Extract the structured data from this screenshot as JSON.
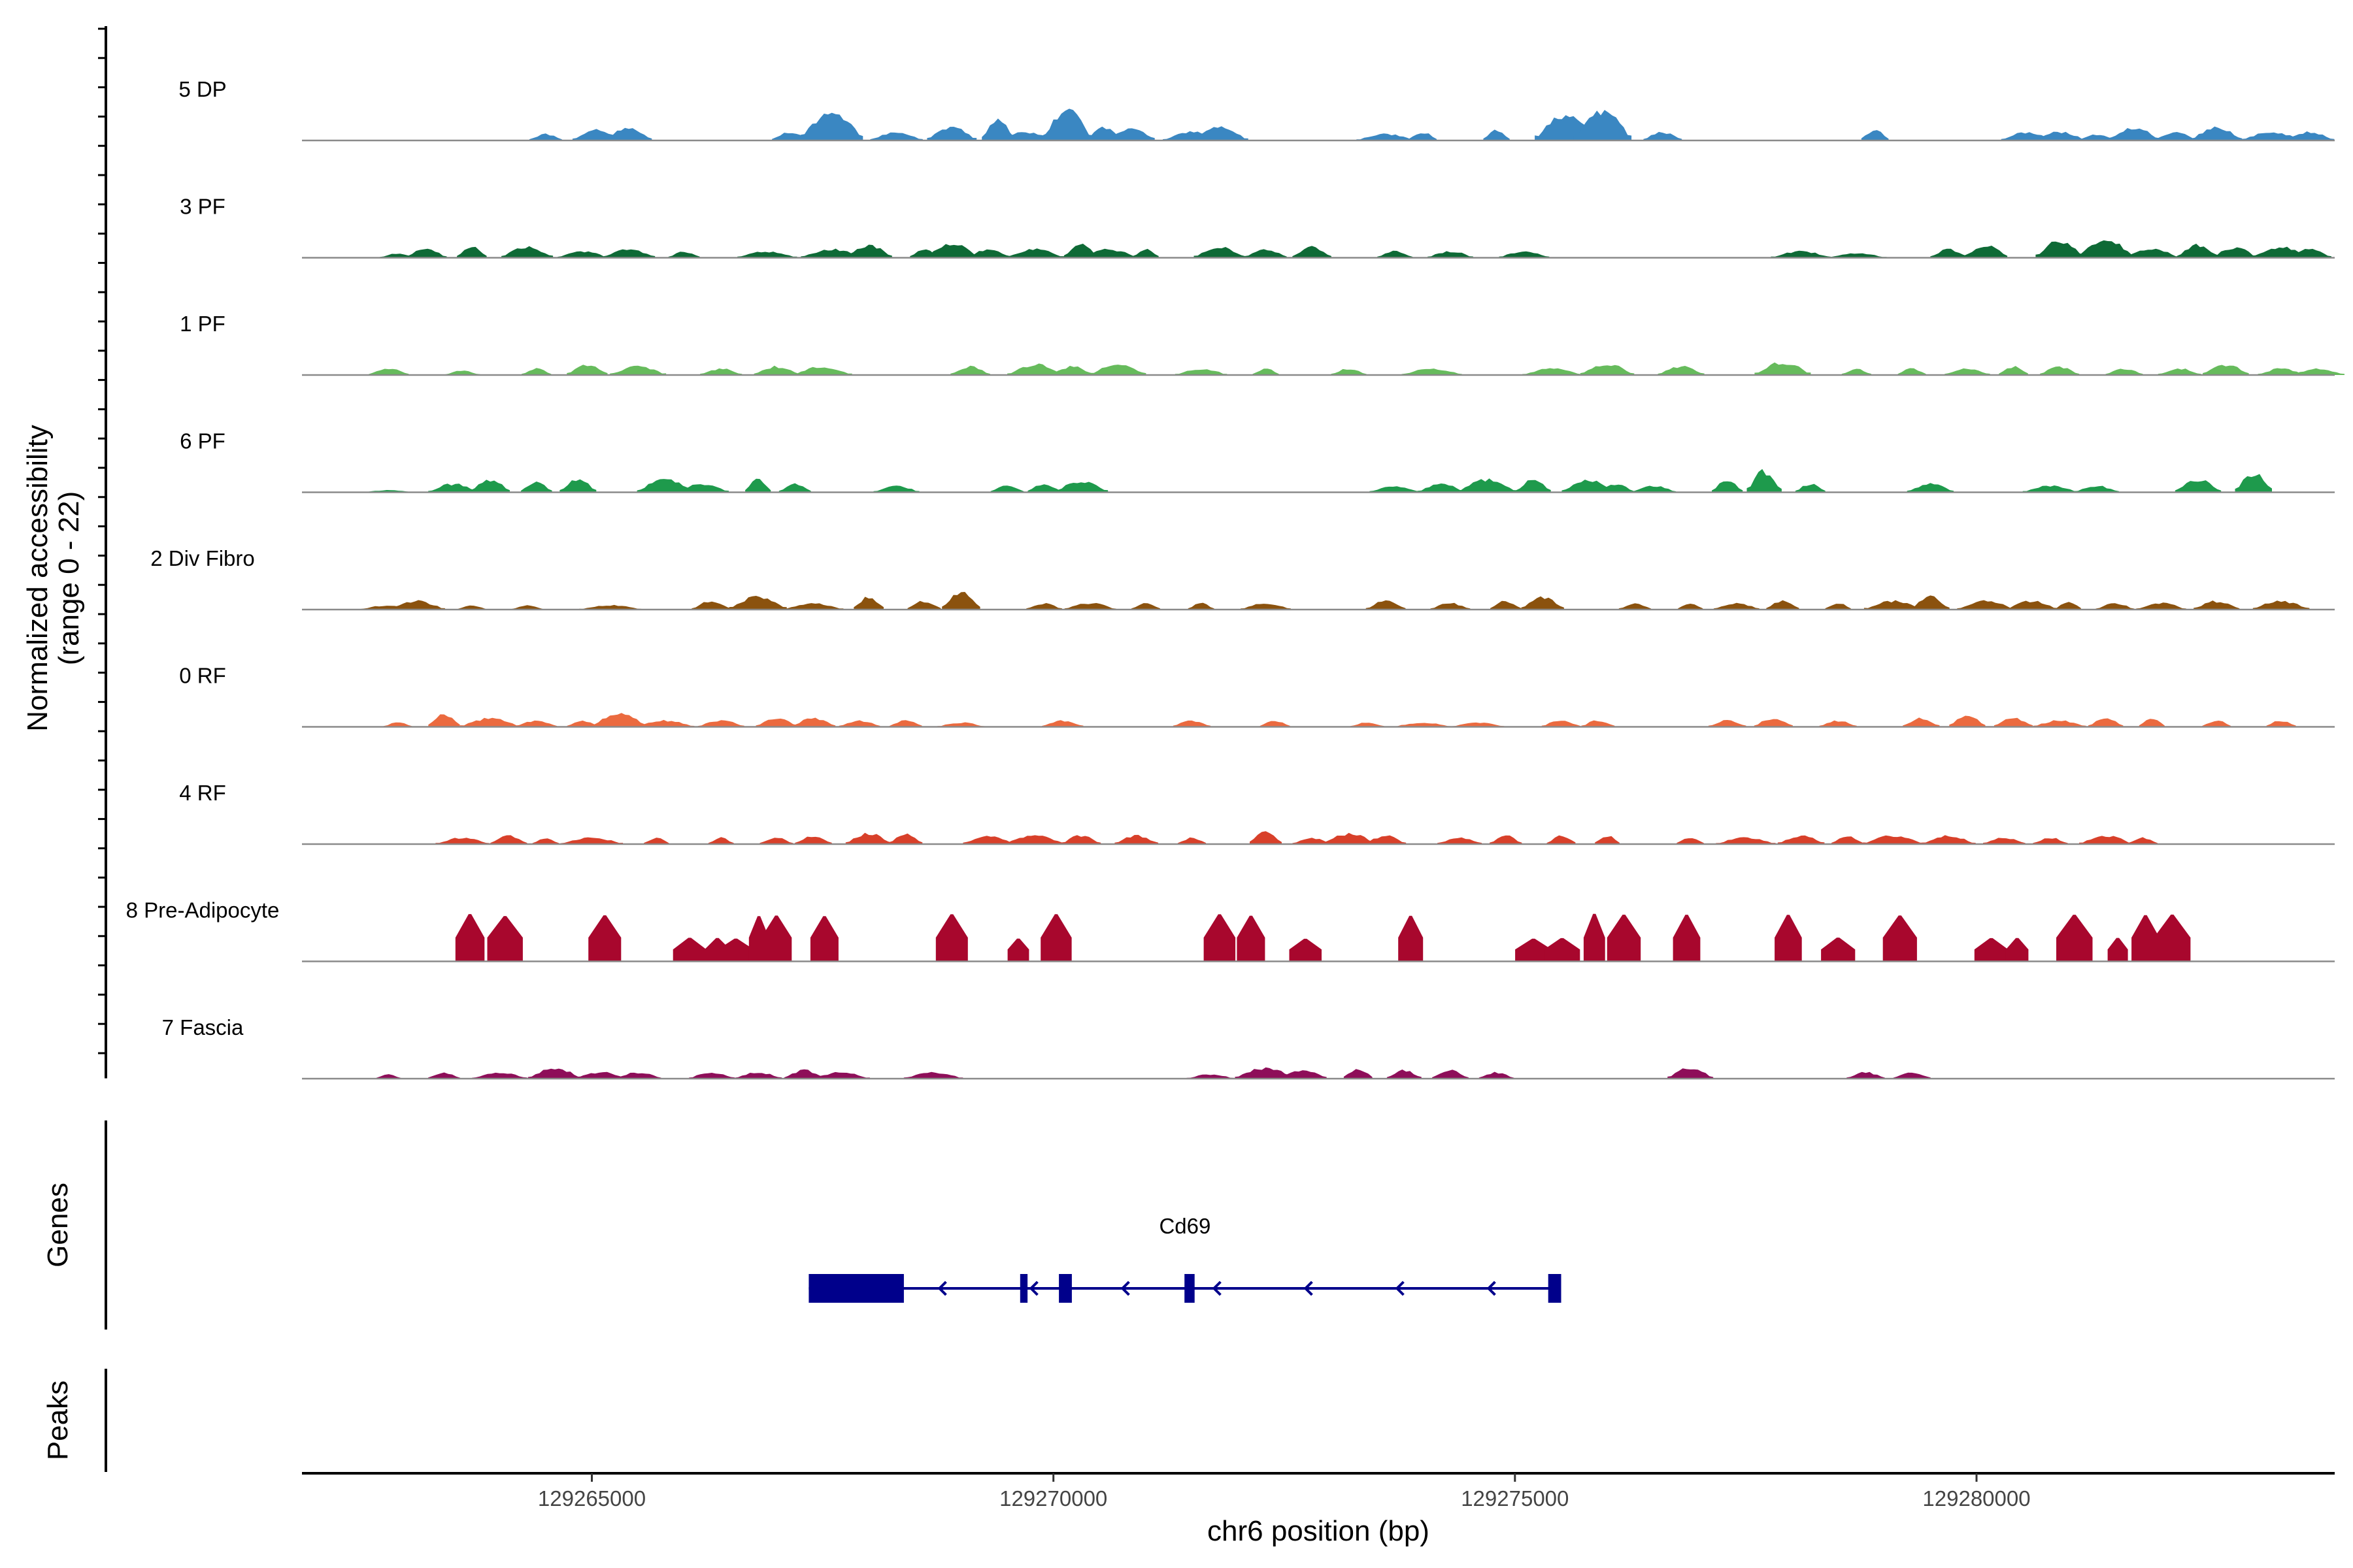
{
  "chart_data": {
    "type": "area",
    "title": "",
    "ylabel": [
      "Normalized accessibility",
      "(range 0 - 22)"
    ],
    "y_range": [
      0,
      22
    ],
    "xlabel": "chr6 position (bp)",
    "xlim": [
      129261860,
      129283880
    ],
    "x_ticks": [
      129265000,
      129270000,
      129275000,
      129280000
    ],
    "x_tick_labels": [
      "129265000",
      "129270000",
      "129275000",
      "129280000"
    ],
    "tracks": [
      {
        "name": "5 DP",
        "color": "#3A87C2",
        "seed": 5,
        "peaks": [
          [
            129264500,
            1.5
          ],
          [
            129265050,
            2.5
          ],
          [
            129265400,
            3
          ],
          [
            129267150,
            2
          ],
          [
            129267600,
            7
          ],
          [
            129268300,
            2
          ],
          [
            129268900,
            3
          ],
          [
            129269400,
            5
          ],
          [
            129269700,
            2
          ],
          [
            129270150,
            7
          ],
          [
            129270550,
            3
          ],
          [
            129270850,
            3
          ],
          [
            129271500,
            2
          ],
          [
            129271800,
            3
          ],
          [
            129273600,
            1.5
          ],
          [
            129274000,
            2
          ],
          [
            129274800,
            2.5
          ],
          [
            129275550,
            6
          ],
          [
            129275950,
            7
          ],
          [
            129276600,
            2
          ],
          [
            129278900,
            2.5
          ],
          [
            129280550,
            2
          ],
          [
            129280900,
            2
          ],
          [
            129281300,
            1.5
          ],
          [
            129281700,
            3
          ],
          [
            129282150,
            2
          ],
          [
            129282600,
            3
          ],
          [
            129283200,
            2
          ],
          [
            129283600,
            2
          ]
        ]
      },
      {
        "name": "3 PF",
        "color": "#0E6A36",
        "seed": 3,
        "peaks": [
          [
            129262900,
            1
          ],
          [
            129263200,
            2
          ],
          [
            129263700,
            2.5
          ],
          [
            129264300,
            2.5
          ],
          [
            129264900,
            1.5
          ],
          [
            129265400,
            2
          ],
          [
            129266000,
            1.5
          ],
          [
            129266900,
            1.5
          ],
          [
            129267600,
            2
          ],
          [
            129268000,
            3
          ],
          [
            129268600,
            2
          ],
          [
            129268900,
            3.5
          ],
          [
            129269300,
            2
          ],
          [
            129269800,
            2
          ],
          [
            129270300,
            3
          ],
          [
            129270600,
            2
          ],
          [
            129271000,
            2
          ],
          [
            129271800,
            2.5
          ],
          [
            129272300,
            2
          ],
          [
            129272800,
            2.5
          ],
          [
            129273700,
            1.5
          ],
          [
            129274300,
            1.5
          ],
          [
            129275100,
            1.5
          ],
          [
            129278100,
            1.5
          ],
          [
            129278700,
            1
          ],
          [
            129279700,
            2
          ],
          [
            129280100,
            3
          ],
          [
            129280900,
            4
          ],
          [
            129281400,
            4
          ],
          [
            129281900,
            2
          ],
          [
            129282400,
            3
          ],
          [
            129282800,
            2.5
          ],
          [
            129283300,
            2.5
          ],
          [
            129283600,
            2
          ]
        ]
      },
      {
        "name": "1 PF",
        "color": "#66BB5C",
        "seed": 1,
        "peaks": [
          [
            129262800,
            1.5
          ],
          [
            129263600,
            1
          ],
          [
            129264400,
            1.5
          ],
          [
            129264950,
            2.5
          ],
          [
            129265500,
            2
          ],
          [
            129266400,
            1.5
          ],
          [
            129267000,
            2
          ],
          [
            129267500,
            2
          ],
          [
            129269100,
            2
          ],
          [
            129269800,
            2.5
          ],
          [
            129270200,
            2
          ],
          [
            129270700,
            2.5
          ],
          [
            129271600,
            1.5
          ],
          [
            129272300,
            1.5
          ],
          [
            129273200,
            1.5
          ],
          [
            129274100,
            1.5
          ],
          [
            129275400,
            1.5
          ],
          [
            129276000,
            2.5
          ],
          [
            129276800,
            2
          ],
          [
            129277900,
            3
          ],
          [
            129278700,
            1.5
          ],
          [
            129279300,
            1.5
          ],
          [
            129279900,
            1.5
          ],
          [
            129280400,
            2
          ],
          [
            129280900,
            2
          ],
          [
            129281600,
            1.5
          ],
          [
            129282200,
            1.5
          ],
          [
            129282700,
            2.5
          ],
          [
            129283300,
            1.5
          ],
          [
            129283700,
            1.5
          ]
        ]
      },
      {
        "name": "6 PF",
        "color": "#1E9A4C",
        "seed": 6,
        "peaks": [
          [
            129262800,
            0.5
          ],
          [
            129263500,
            2
          ],
          [
            129263900,
            3
          ],
          [
            129264400,
            2.5
          ],
          [
            129264850,
            3
          ],
          [
            129265800,
            3
          ],
          [
            129266200,
            2
          ],
          [
            129266800,
            3
          ],
          [
            129267200,
            2
          ],
          [
            129268300,
            1.5
          ],
          [
            129269500,
            1.5
          ],
          [
            129269900,
            2
          ],
          [
            129270300,
            2.5
          ],
          [
            129273700,
            1.5
          ],
          [
            129274200,
            2
          ],
          [
            129274700,
            3
          ],
          [
            129275200,
            3
          ],
          [
            129275800,
            3
          ],
          [
            129276100,
            2
          ],
          [
            129276500,
            1.5
          ],
          [
            129277300,
            3
          ],
          [
            129277700,
            5
          ],
          [
            129278200,
            2
          ],
          [
            129279500,
            2
          ],
          [
            129280800,
            1.5
          ],
          [
            129281300,
            1.5
          ],
          [
            129282400,
            3
          ],
          [
            129283000,
            4.5
          ]
        ]
      },
      {
        "name": "2 Div Fibro",
        "color": "#8B520E",
        "seed": 2,
        "peaks": [
          [
            129262800,
            1
          ],
          [
            129263100,
            2
          ],
          [
            129263700,
            1
          ],
          [
            129264300,
            1
          ],
          [
            129265200,
            1
          ],
          [
            129266300,
            2
          ],
          [
            129266800,
            3
          ],
          [
            129267400,
            1.5
          ],
          [
            129268000,
            3
          ],
          [
            129268600,
            2
          ],
          [
            129269000,
            4
          ],
          [
            129269900,
            1.5
          ],
          [
            129270400,
            1.5
          ],
          [
            129271000,
            1.5
          ],
          [
            129271600,
            1.5
          ],
          [
            129272300,
            1.5
          ],
          [
            129273600,
            2
          ],
          [
            129274300,
            1.5
          ],
          [
            129274900,
            2
          ],
          [
            129275300,
            3
          ],
          [
            129276300,
            1.5
          ],
          [
            129276900,
            1.5
          ],
          [
            129277400,
            1.5
          ],
          [
            129277900,
            2
          ],
          [
            129278500,
            1.5
          ],
          [
            129279100,
            2
          ],
          [
            129279500,
            3
          ],
          [
            129280100,
            2
          ],
          [
            129280600,
            2
          ],
          [
            129281000,
            2
          ],
          [
            129281500,
            1.5
          ],
          [
            129282000,
            1.5
          ],
          [
            129282600,
            2
          ],
          [
            129283300,
            2
          ]
        ]
      },
      {
        "name": "0 RF",
        "color": "#EB6A3F",
        "seed": 7,
        "peaks": [
          [
            129262900,
            1
          ],
          [
            129263400,
            3
          ],
          [
            129263900,
            2
          ],
          [
            129264400,
            1.5
          ],
          [
            129264900,
            1.5
          ],
          [
            129265300,
            3
          ],
          [
            129265800,
            1.5
          ],
          [
            129266400,
            1.5
          ],
          [
            129267000,
            2
          ],
          [
            129267400,
            2
          ],
          [
            129267900,
            1.5
          ],
          [
            129268400,
            1.5
          ],
          [
            129269000,
            1
          ],
          [
            129270100,
            1.5
          ],
          [
            129271500,
            1.5
          ],
          [
            129272400,
            1.5
          ],
          [
            129273400,
            1
          ],
          [
            129274000,
            1
          ],
          [
            129274600,
            1
          ],
          [
            129275500,
            1.5
          ],
          [
            129275900,
            1.5
          ],
          [
            129277300,
            1.5
          ],
          [
            129277800,
            2
          ],
          [
            129278500,
            1.5
          ],
          [
            129279400,
            2
          ],
          [
            129279900,
            2.5
          ],
          [
            129280400,
            2
          ],
          [
            129280900,
            1.5
          ],
          [
            129281400,
            2
          ],
          [
            129281900,
            2
          ],
          [
            129282600,
            1.5
          ],
          [
            129283300,
            1.5
          ]
        ]
      },
      {
        "name": "4 RF",
        "color": "#D8402A",
        "seed": 4,
        "peaks": [
          [
            129263600,
            1.5
          ],
          [
            129264100,
            2
          ],
          [
            129264500,
            1.5
          ],
          [
            129265000,
            1.5
          ],
          [
            129265700,
            1.5
          ],
          [
            129266400,
            1.5
          ],
          [
            129267000,
            1.5
          ],
          [
            129267400,
            2
          ],
          [
            129268000,
            2.5
          ],
          [
            129268400,
            2.5
          ],
          [
            129269300,
            2
          ],
          [
            129269800,
            2
          ],
          [
            129270300,
            2
          ],
          [
            129270900,
            2
          ],
          [
            129271500,
            1.5
          ],
          [
            129272300,
            3
          ],
          [
            129272800,
            1.5
          ],
          [
            129273200,
            2.5
          ],
          [
            129273600,
            2
          ],
          [
            129274400,
            1.5
          ],
          [
            129274900,
            2
          ],
          [
            129275500,
            2
          ],
          [
            129276000,
            2
          ],
          [
            129276900,
            1.5
          ],
          [
            129277500,
            1.5
          ],
          [
            129278100,
            2
          ],
          [
            129278600,
            2
          ],
          [
            129279100,
            2
          ],
          [
            129279700,
            2
          ],
          [
            129280300,
            1.5
          ],
          [
            129280800,
            1.5
          ],
          [
            129281400,
            2
          ],
          [
            129281800,
            1.5
          ]
        ]
      },
      {
        "name": "8 Pre-Adipocyte",
        "color": "#A8072D",
        "seed": 8,
        "peaks": [
          [
            129263680,
            10
          ],
          [
            129264060,
            10
          ],
          [
            129265140,
            10
          ],
          [
            129266060,
            5
          ],
          [
            129266360,
            5
          ],
          [
            129266560,
            5
          ],
          [
            129266810,
            10
          ],
          [
            129267000,
            10
          ],
          [
            129267520,
            10
          ],
          [
            129268900,
            10
          ],
          [
            129269620,
            5
          ],
          [
            129270030,
            10
          ],
          [
            129271800,
            10
          ],
          [
            129272140,
            10
          ],
          [
            129272730,
            5
          ],
          [
            129273870,
            10
          ],
          [
            129275200,
            5
          ],
          [
            129275510,
            5
          ],
          [
            129275860,
            10
          ],
          [
            129276180,
            10
          ],
          [
            129276860,
            10
          ],
          [
            129277960,
            10
          ],
          [
            129278500,
            5
          ],
          [
            129279170,
            10
          ],
          [
            129280160,
            5
          ],
          [
            129280440,
            5
          ],
          [
            129281060,
            10
          ],
          [
            129281530,
            5
          ],
          [
            129281830,
            10
          ],
          [
            129282120,
            10
          ]
        ]
      },
      {
        "name": "7 Fascia",
        "color": "#8E0E59",
        "seed": 9,
        "peaks": [
          [
            129262800,
            1
          ],
          [
            129263400,
            1.5
          ],
          [
            129264000,
            1.5
          ],
          [
            129264600,
            2.5
          ],
          [
            129265100,
            1.5
          ],
          [
            129265500,
            1.5
          ],
          [
            129266300,
            1.5
          ],
          [
            129266800,
            1.5
          ],
          [
            129267300,
            2
          ],
          [
            129267700,
            1.5
          ],
          [
            129268700,
            1.5
          ],
          [
            129271700,
            1
          ],
          [
            129272300,
            2.5
          ],
          [
            129272700,
            2
          ],
          [
            129273300,
            2.5
          ],
          [
            129273800,
            2
          ],
          [
            129274300,
            2
          ],
          [
            129274800,
            1.5
          ],
          [
            129276900,
            2.5
          ],
          [
            129278800,
            1.5
          ],
          [
            129279300,
            1.5
          ]
        ]
      }
    ],
    "genes": [
      {
        "name": "Cd69",
        "start": 129267350,
        "end": 129275500,
        "strand": "-",
        "color": "#00008B",
        "exons": [
          [
            129267350,
            129268380
          ],
          [
            129269640,
            129269720
          ],
          [
            129270060,
            129270200
          ],
          [
            129271420,
            129271530
          ],
          [
            129275360,
            129275500
          ]
        ]
      }
    ],
    "peaks_track": [],
    "panel_labels": {
      "genes": "Genes",
      "peaks": "Peaks"
    }
  }
}
